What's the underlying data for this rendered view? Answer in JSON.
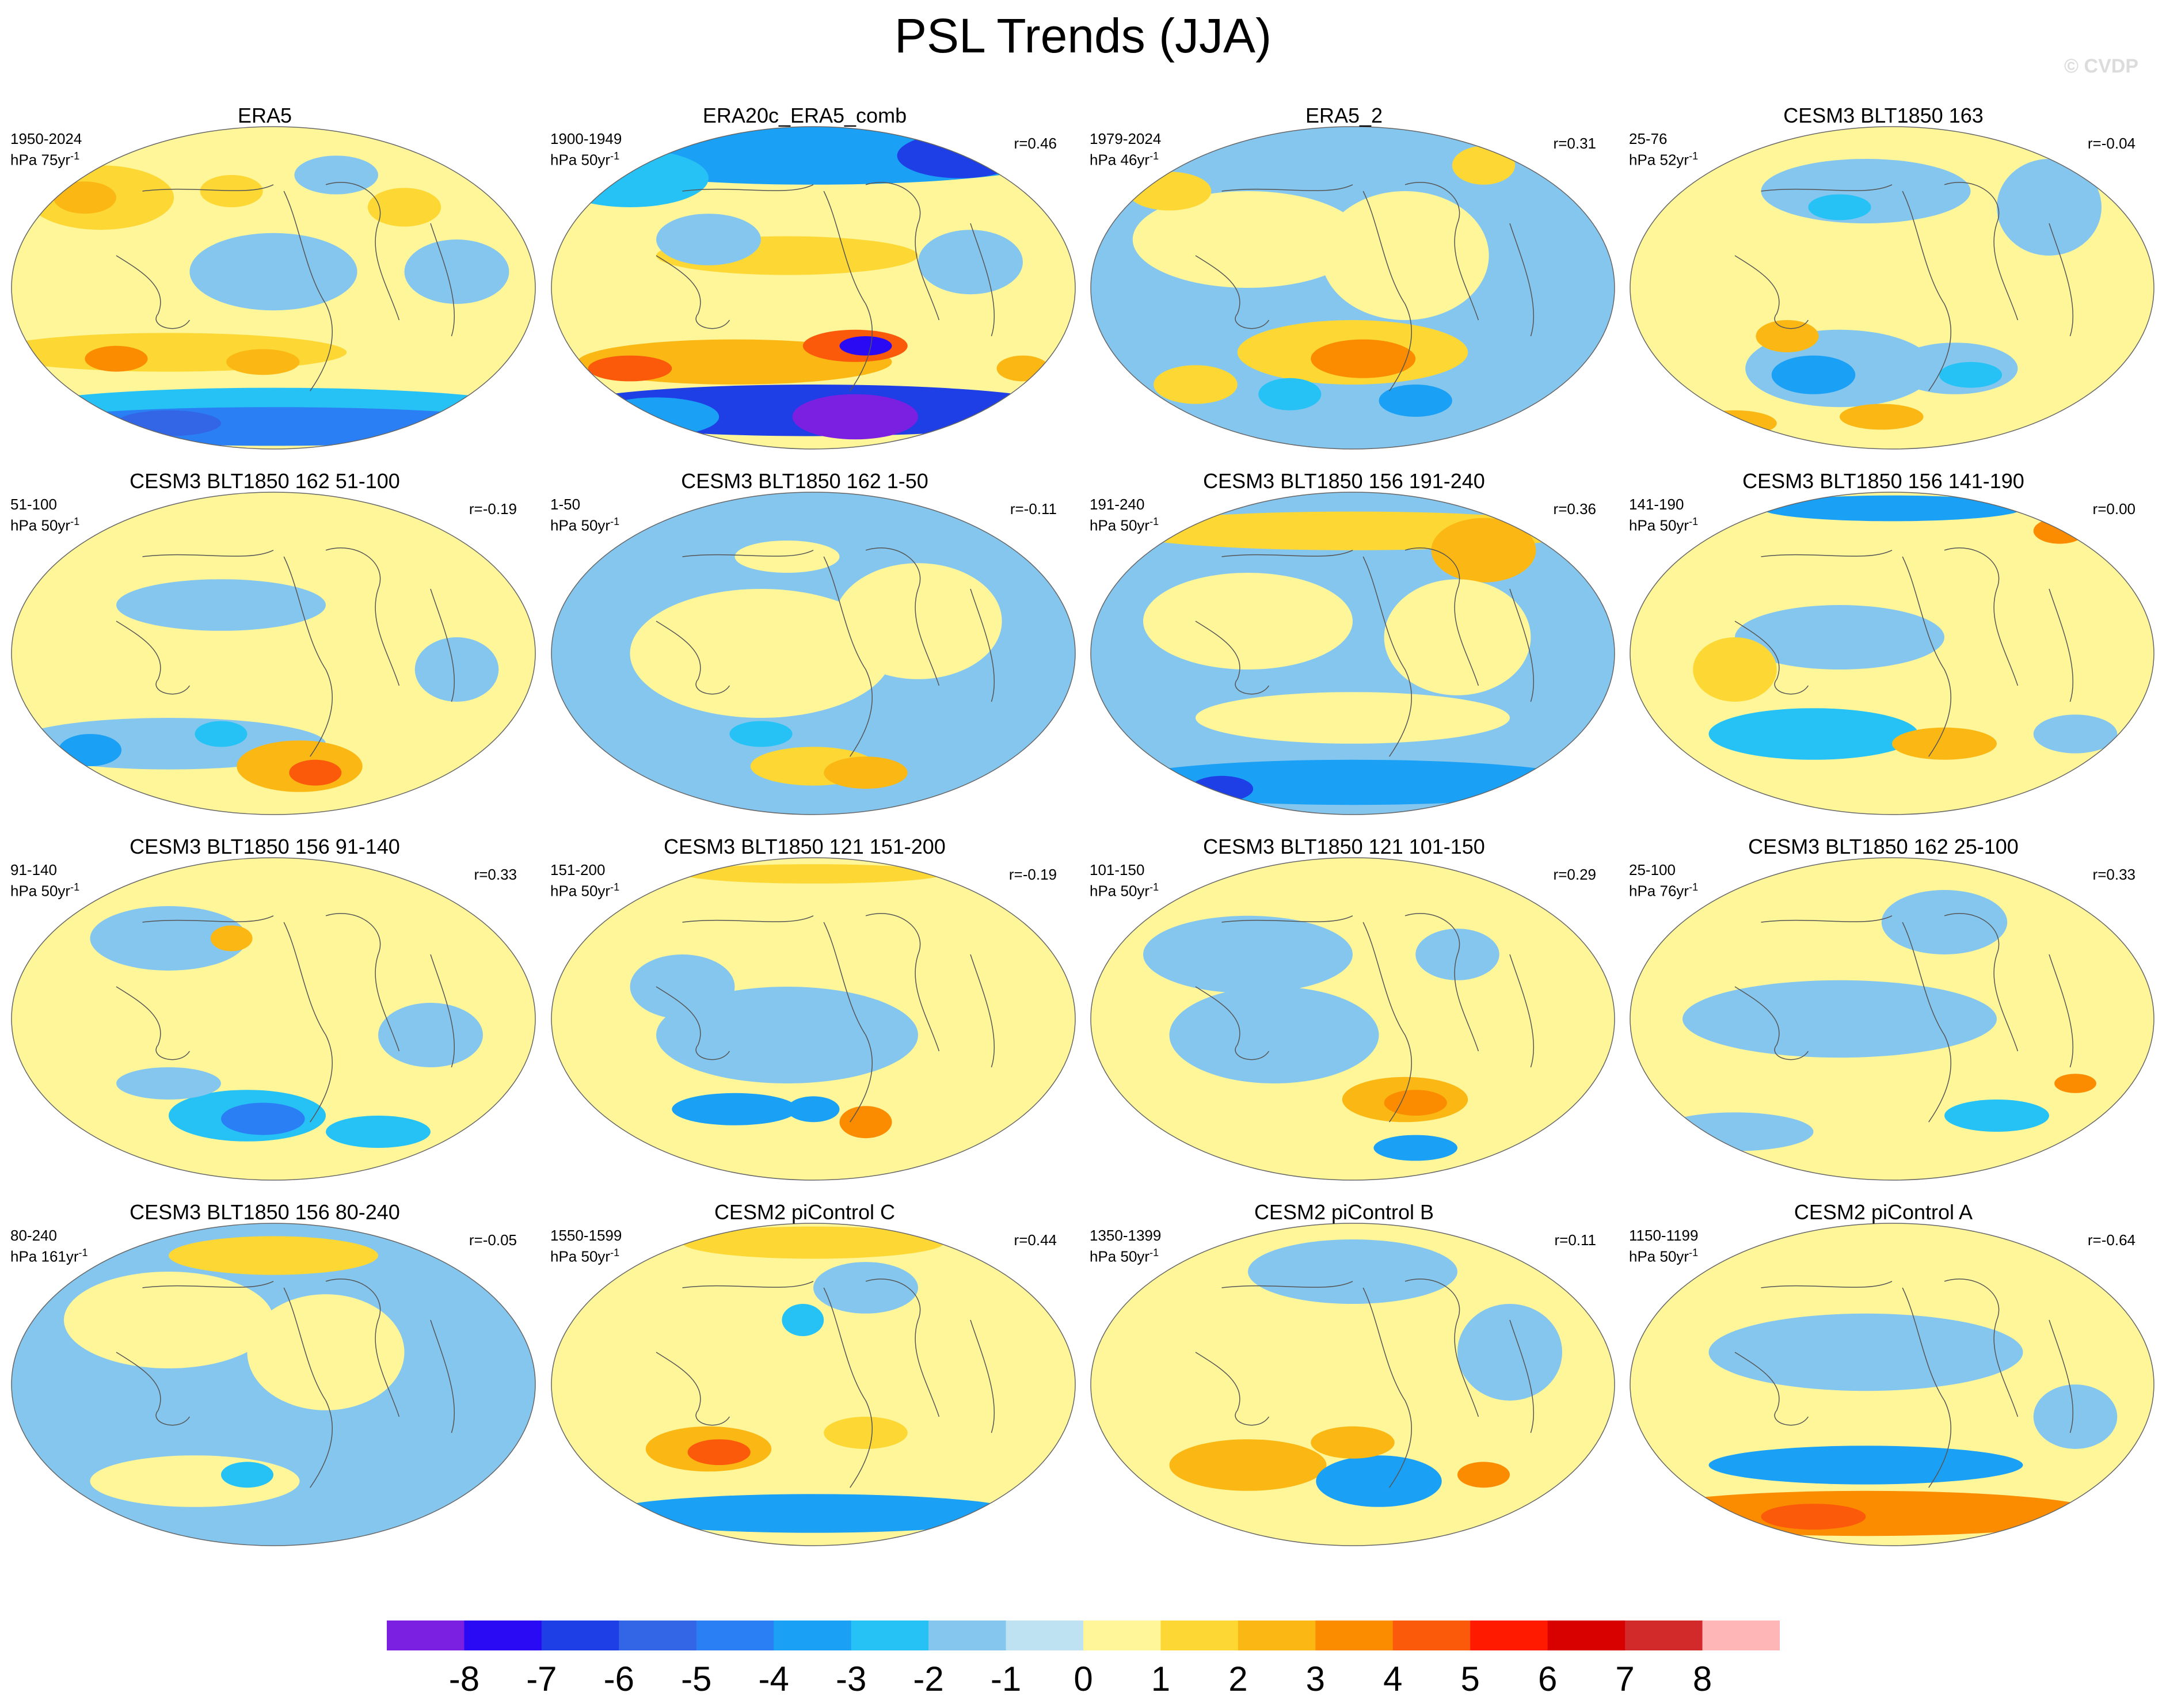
{
  "figure": {
    "title": "PSL Trends (JJA)",
    "watermark": "© CVDP"
  },
  "chart_data": {
    "type": "contour-map-grid",
    "variable": "PSL",
    "season": "JJA",
    "projection": "Robinson-like global map",
    "panels": [
      {
        "title": "ERA5",
        "period": "1950-2024",
        "units": "hPa 75yr",
        "corr": "",
        "pattern": "era5"
      },
      {
        "title": "ERA20c_ERA5_comb",
        "period": "1900-1949",
        "units": "hPa 50yr",
        "corr": "r=0.46",
        "pattern": "era20c"
      },
      {
        "title": "ERA5_2",
        "period": "1979-2024",
        "units": "hPa 46yr",
        "corr": "r=0.31",
        "pattern": "era5_2"
      },
      {
        "title": "CESM3 BLT1850 163",
        "period": "25-76",
        "units": "hPa 52yr",
        "corr": "r=-0.04",
        "pattern": "m163"
      },
      {
        "title": "CESM3 BLT1850 162 51-100",
        "period": "51-100",
        "units": "hPa 50yr",
        "corr": "r=-0.19",
        "pattern": "m162a"
      },
      {
        "title": "CESM3 BLT1850 162 1-50",
        "period": "1-50",
        "units": "hPa 50yr",
        "corr": "r=-0.11",
        "pattern": "m162b"
      },
      {
        "title": "CESM3 BLT1850 156 191-240",
        "period": "191-240",
        "units": "hPa 50yr",
        "corr": "r=0.36",
        "pattern": "m156a"
      },
      {
        "title": "CESM3 BLT1850 156 141-190",
        "period": "141-190",
        "units": "hPa 50yr",
        "corr": "r=0.00",
        "pattern": "m156b"
      },
      {
        "title": "CESM3 BLT1850 156 91-140",
        "period": "91-140",
        "units": "hPa 50yr",
        "corr": "r=0.33",
        "pattern": "m156c"
      },
      {
        "title": "CESM3 BLT1850 121 151-200",
        "period": "151-200",
        "units": "hPa 50yr",
        "corr": "r=-0.19",
        "pattern": "m121a"
      },
      {
        "title": "CESM3 BLT1850 121 101-150",
        "period": "101-150",
        "units": "hPa 50yr",
        "corr": "r=0.29",
        "pattern": "m121b"
      },
      {
        "title": "CESM3 BLT1850 162 25-100",
        "period": "25-100",
        "units": "hPa 76yr",
        "corr": "r=0.33",
        "pattern": "m162c"
      },
      {
        "title": "CESM3 BLT1850 156 80-240",
        "period": "80-240",
        "units": "hPa 161yr",
        "corr": "r=-0.05",
        "pattern": "m156d"
      },
      {
        "title": "CESM2 piControl C",
        "period": "1550-1599",
        "units": "hPa 50yr",
        "corr": "r=0.44",
        "pattern": "picC"
      },
      {
        "title": "CESM2 piControl B",
        "period": "1350-1399",
        "units": "hPa 50yr",
        "corr": "r=0.11",
        "pattern": "picB"
      },
      {
        "title": "CESM2 piControl A",
        "period": "1150-1199",
        "units": "hPa 50yr",
        "corr": "r=-0.64",
        "pattern": "picA"
      }
    ],
    "colorbar": {
      "levels": [
        -8,
        -7,
        -6,
        -5,
        -4,
        -3,
        -2,
        -1,
        0,
        1,
        2,
        3,
        4,
        5,
        6,
        7,
        8
      ],
      "colors": [
        "#7b1fe0",
        "#2a0af5",
        "#1f3fe6",
        "#3366e6",
        "#2a7ff5",
        "#1aa0f5",
        "#26c2f5",
        "#85c6ee",
        "#bfe2f3",
        "#fff69a",
        "#fdd834",
        "#fbb714",
        "#fb8c00",
        "#fb5a0a",
        "#ff1a00",
        "#d90000",
        "#d22a2a",
        "#ffb6b6"
      ]
    }
  }
}
